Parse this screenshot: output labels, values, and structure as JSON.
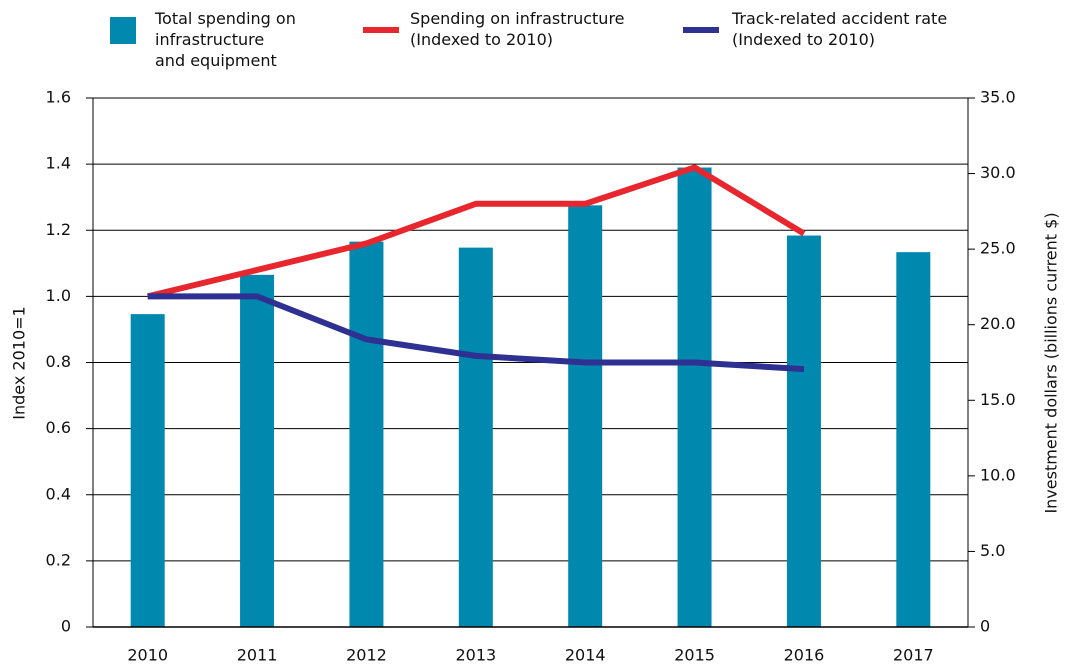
{
  "chart_data": {
    "type": "bar",
    "y_label": "Index 2010=1",
    "y2_label": "Investment dollars (billions current $)",
    "categories": [
      "2010",
      "2011",
      "2012",
      "2013",
      "2014",
      "2015",
      "2016",
      "2017"
    ],
    "series": [
      {
        "name": "Total spending on\ninfrastructure\nand equipment",
        "type": "bar",
        "axis": "y2",
        "color": "#0088ae",
        "values": [
          20.7,
          23.3,
          25.5,
          25.1,
          27.9,
          30.4,
          25.9,
          24.8
        ]
      },
      {
        "name": "Spending on infrastructure\n(Indexed to 2010)",
        "type": "line",
        "axis": "y",
        "color": "#e8262d",
        "values": [
          1.0,
          1.08,
          1.16,
          1.28,
          1.28,
          1.39,
          1.19,
          null
        ]
      },
      {
        "name": "Track-related accident rate\n(Indexed to 2010)",
        "type": "line",
        "axis": "y",
        "color": "#2e3192",
        "values": [
          1.0,
          1.0,
          0.87,
          0.82,
          0.8,
          0.8,
          0.78,
          null
        ]
      }
    ],
    "ylim": [
      0,
      1.6
    ],
    "yticks": [
      0,
      0.2,
      0.4,
      0.6,
      0.8,
      {
        "value": 1,
        "label": "1.0"
      },
      1.2,
      1.4,
      1.6
    ],
    "y2lim": [
      0,
      35
    ],
    "y2ticks": [
      0,
      {
        "value": 5,
        "label": "5.0"
      },
      {
        "value": 10,
        "label": "10.0"
      },
      {
        "value": 15,
        "label": "15.0"
      },
      {
        "value": 20,
        "label": "20.0"
      },
      {
        "value": 25,
        "label": "25.0"
      },
      {
        "value": 30,
        "label": "30.0"
      },
      {
        "value": 35,
        "label": "35.0"
      }
    ],
    "grid": true
  }
}
